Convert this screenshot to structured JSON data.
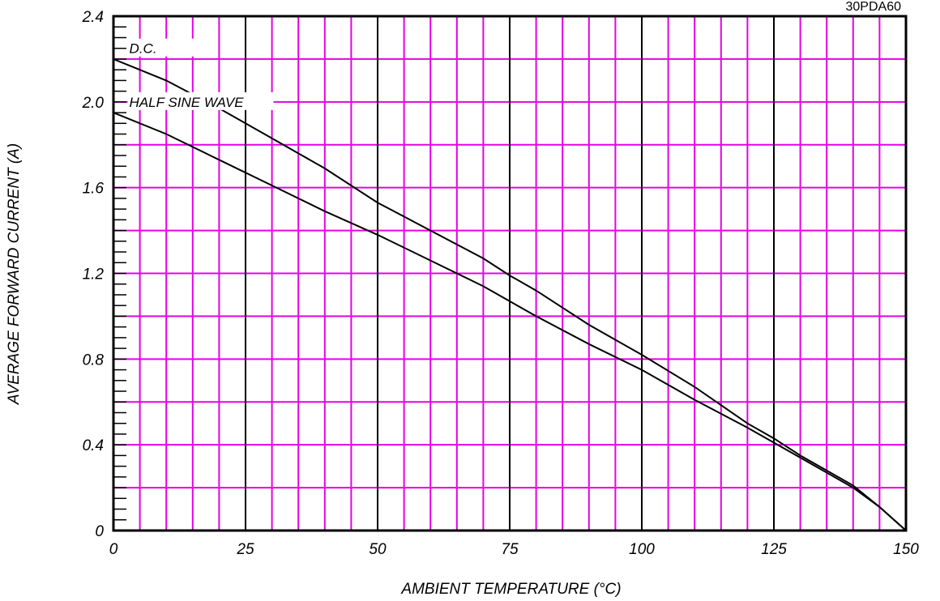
{
  "chart_data": {
    "type": "line",
    "title": "",
    "part_number": "30PDA60",
    "xlabel": "AMBIENT TEMPERATURE (°C)",
    "ylabel": "AVERAGE FORWARD CURRENT (A)",
    "xlim": [
      0,
      150
    ],
    "ylim": [
      0,
      2.4
    ],
    "x_ticks": [
      0,
      25,
      50,
      75,
      100,
      125,
      150
    ],
    "x_tick_labels": [
      "0",
      "25",
      "50",
      "75",
      "100",
      "125",
      "150"
    ],
    "y_ticks": [
      0,
      0.4,
      0.8,
      1.2,
      1.6,
      2.0,
      2.4
    ],
    "y_tick_labels": [
      "0",
      "0.4",
      "0.8",
      "1.2",
      "1.6",
      "2.0",
      "2.4"
    ],
    "grid": true,
    "colors": {
      "minor_grid": "#e600e6",
      "major_grid": "#000000",
      "line": "#000000"
    },
    "series": [
      {
        "name": "D.C.",
        "x": [
          0,
          10,
          20,
          30,
          40,
          50,
          60,
          70,
          75,
          80,
          90,
          100,
          110,
          120,
          125,
          130,
          140,
          145,
          150
        ],
        "y": [
          2.2,
          2.1,
          1.97,
          1.83,
          1.69,
          1.53,
          1.4,
          1.27,
          1.19,
          1.12,
          0.96,
          0.82,
          0.67,
          0.5,
          0.43,
          0.35,
          0.21,
          0.11,
          0.0
        ]
      },
      {
        "name": "HALF SINE WAVE",
        "x": [
          0,
          10,
          20,
          30,
          40,
          50,
          60,
          70,
          75,
          80,
          90,
          100,
          110,
          120,
          125,
          130,
          140,
          145,
          150
        ],
        "y": [
          1.95,
          1.85,
          1.73,
          1.61,
          1.49,
          1.38,
          1.26,
          1.14,
          1.07,
          1.0,
          0.87,
          0.75,
          0.61,
          0.48,
          0.41,
          0.34,
          0.2,
          0.11,
          0.0
        ]
      }
    ]
  }
}
